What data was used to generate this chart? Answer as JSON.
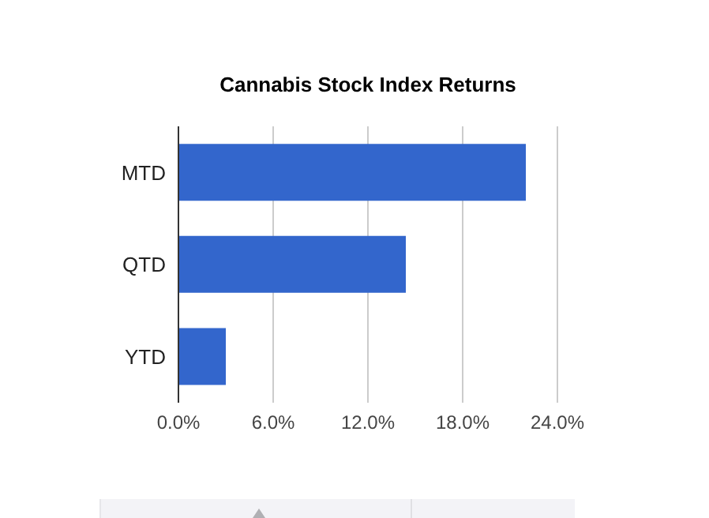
{
  "chart_data": {
    "type": "bar",
    "orientation": "horizontal",
    "title": "Cannabis Stock Index Returns",
    "categories": [
      "MTD",
      "QTD",
      "YTD"
    ],
    "values": [
      22.0,
      14.4,
      3.0
    ],
    "color": "#3366cc",
    "xlim": [
      0,
      24
    ],
    "xticks": [
      {
        "value": 0,
        "label": "0.0%"
      },
      {
        "value": 6,
        "label": "6.0%"
      },
      {
        "value": 12,
        "label": "12.0%"
      },
      {
        "value": 18,
        "label": "18.0%"
      },
      {
        "value": 24,
        "label": "24.0%"
      }
    ],
    "grid": "x",
    "legend": false
  }
}
